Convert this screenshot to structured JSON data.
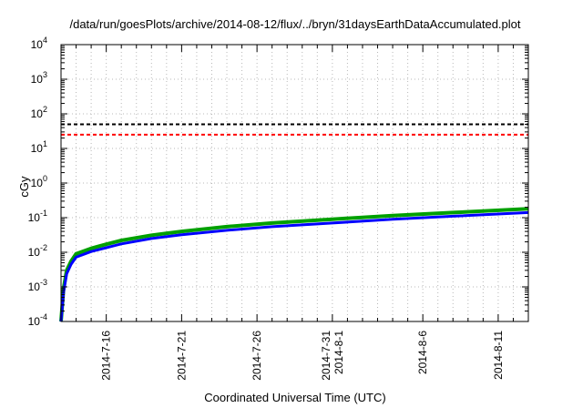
{
  "chart_data": {
    "type": "line",
    "title": "/data/run/goesPlots/archive/2014-08-12/flux/../bryn/31daysEarthDataAccumulated.plot",
    "xlabel": "Coordinated Universal Time (UTC)",
    "ylabel": "cGy",
    "yscale": "log",
    "ylim": [
      0.0001,
      10000
    ],
    "xlim": [
      "2014-07-13",
      "2014-08-13"
    ],
    "grid": true,
    "y_ticks": [
      {
        "base": "10",
        "exp": "-4"
      },
      {
        "base": "10",
        "exp": "-3"
      },
      {
        "base": "10",
        "exp": "-2"
      },
      {
        "base": "10",
        "exp": "-1"
      },
      {
        "base": "10",
        "exp": "0"
      },
      {
        "base": "10",
        "exp": "1"
      },
      {
        "base": "10",
        "exp": "2"
      },
      {
        "base": "10",
        "exp": "3"
      },
      {
        "base": "10",
        "exp": "4"
      }
    ],
    "x_ticks": [
      {
        "date": "2014-07-16",
        "lines": [
          "2014-7-16"
        ]
      },
      {
        "date": "2014-07-21",
        "lines": [
          "2014-7-21"
        ]
      },
      {
        "date": "2014-07-26",
        "lines": [
          "2014-7-26"
        ]
      },
      {
        "date": "2014-07-31",
        "lines": [
          "2014-7-31",
          "2014-8-1"
        ]
      },
      {
        "date": "2014-08-06",
        "lines": [
          "2014-8-6"
        ]
      },
      {
        "date": "2014-08-11",
        "lines": [
          "2014-8-11"
        ]
      }
    ],
    "reference_lines": [
      {
        "value": 50,
        "color": "#000000"
      },
      {
        "value": 25,
        "color": "#ff0000"
      }
    ],
    "series": [
      {
        "color": "#00a000",
        "x": [
          "2014-07-13T00:00",
          "2014-07-13T04:00",
          "2014-07-13T09:00",
          "2014-07-13T16:00",
          "2014-07-14T00:00",
          "2014-07-15T00:00",
          "2014-07-16T00:00",
          "2014-07-17T00:00",
          "2014-07-19T00:00",
          "2014-07-21T00:00",
          "2014-07-24T00:00",
          "2014-07-27T00:00",
          "2014-07-31T00:00",
          "2014-08-04T00:00",
          "2014-08-08T00:00",
          "2014-08-13T00:00"
        ],
        "y": [
          0.0001,
          0.0009,
          0.003,
          0.0055,
          0.009,
          0.013,
          0.017,
          0.022,
          0.031,
          0.04,
          0.055,
          0.07,
          0.09,
          0.115,
          0.14,
          0.18
        ]
      },
      {
        "color": "#0000ff",
        "x": [
          "2014-07-13T00:00",
          "2014-07-13T04:00",
          "2014-07-13T09:00",
          "2014-07-13T16:00",
          "2014-07-14T00:00",
          "2014-07-15T00:00",
          "2014-07-16T00:00",
          "2014-07-17T00:00",
          "2014-07-19T00:00",
          "2014-07-21T00:00",
          "2014-07-24T00:00",
          "2014-07-27T00:00",
          "2014-07-31T00:00",
          "2014-08-04T00:00",
          "2014-08-08T00:00",
          "2014-08-13T00:00"
        ],
        "y": [
          0.0001,
          0.0007,
          0.0024,
          0.0045,
          0.0072,
          0.0105,
          0.0135,
          0.0175,
          0.025,
          0.032,
          0.043,
          0.055,
          0.07,
          0.09,
          0.11,
          0.14
        ]
      }
    ]
  }
}
